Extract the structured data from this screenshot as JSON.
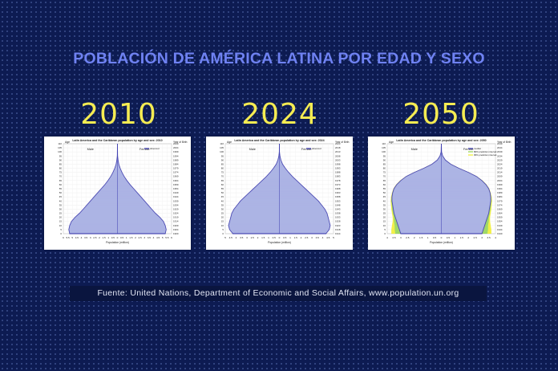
{
  "title": "POBLACIÓN DE AMÉRICA LATINA POR EDAD Y SEXO",
  "source": "Fuente: United Nations, Department of Economic and Social Affairs, www.population.un.org",
  "colors": {
    "background": "#0d1b52",
    "title": "#6f82f2",
    "year": "#f5ec52",
    "pyramid_fill": "#9da6e0",
    "pyramid_line": "#2d2ca6",
    "pi80": "#8fd14f",
    "pi95": "#f0ee2a"
  },
  "chart_data": [
    {
      "type": "population-pyramid",
      "year_label": "2010",
      "title": "Latin America and the Caribbean population by age and sex: 2010",
      "left_label": "Male",
      "right_label": "Female",
      "y_left_title": "Age",
      "y_right_title": "Year of Birth",
      "xlabel": "Population (million)",
      "legend": [
        "observed"
      ],
      "x_ticks": [
        "6",
        "5.5",
        "5",
        "4.5",
        "4",
        "3.5",
        "3",
        "2.5",
        "2",
        "1.5",
        "1",
        "0.5",
        "0",
        "0.5",
        "1",
        "1.5",
        "2",
        "2.5",
        "3",
        "3.5",
        "4",
        "4.5",
        "5",
        "5.5",
        "6"
      ],
      "age_ticks": [
        "0",
        "5",
        "10",
        "15",
        "20",
        "25",
        "30",
        "35",
        "40",
        "45",
        "50",
        "55",
        "60",
        "65",
        "70",
        "75",
        "80",
        "85",
        "90",
        "95",
        "100",
        "105",
        "110"
      ],
      "birth_ticks": [
        "1900",
        "1904",
        "1909",
        "1914",
        "1919",
        "1924",
        "1929",
        "1934",
        "1939",
        "1944",
        "1949",
        "1954",
        "1959",
        "1964",
        "1969",
        "1974",
        "1979",
        "1984",
        "1989",
        "1994",
        "1999",
        "2004",
        "2009"
      ],
      "xlim": [
        -6,
        6
      ],
      "age": [
        0,
        5,
        10,
        15,
        20,
        25,
        30,
        35,
        40,
        45,
        50,
        55,
        60,
        65,
        70,
        75,
        80,
        85,
        90,
        95,
        100,
        110
      ],
      "observed": [
        5.3,
        5.4,
        5.3,
        5.1,
        4.7,
        4.2,
        3.8,
        3.4,
        3.0,
        2.6,
        2.2,
        1.8,
        1.4,
        1.05,
        0.75,
        0.5,
        0.3,
        0.15,
        0.07,
        0.02,
        0.005,
        0
      ]
    },
    {
      "type": "population-pyramid",
      "year_label": "2024",
      "title": "Latin America and the Caribbean population by age and sex: 2024",
      "left_label": "Male",
      "right_label": "Female",
      "y_left_title": "Age",
      "y_right_title": "Year of Birth",
      "xlabel": "Population (million)",
      "legend": [
        "observed"
      ],
      "x_ticks": [
        "5",
        "4.5",
        "4",
        "3.5",
        "3",
        "2.5",
        "2",
        "1.5",
        "1",
        "0.5",
        "0",
        "0.5",
        "1",
        "1.5",
        "2",
        "2.5",
        "3",
        "3.5",
        "4",
        "4.5",
        "5"
      ],
      "age_ticks": [
        "0",
        "5",
        "10",
        "15",
        "20",
        "25",
        "30",
        "35",
        "40",
        "45",
        "50",
        "55",
        "60",
        "65",
        "70",
        "75",
        "80",
        "85",
        "90",
        "95",
        "100",
        "105",
        "110"
      ],
      "birth_ticks": [
        "1914",
        "1918",
        "1923",
        "1928",
        "1933",
        "1938",
        "1943",
        "1948",
        "1953",
        "1958",
        "1963",
        "1968",
        "1973",
        "1978",
        "1983",
        "1988",
        "1993",
        "1998",
        "2003",
        "2008",
        "2013",
        "2018",
        "2023"
      ],
      "xlim": [
        -5,
        5
      ],
      "age": [
        0,
        5,
        10,
        15,
        20,
        25,
        30,
        35,
        40,
        45,
        50,
        55,
        60,
        65,
        70,
        75,
        80,
        85,
        90,
        95,
        100,
        110
      ],
      "observed": [
        4.3,
        4.6,
        4.7,
        4.6,
        4.5,
        4.4,
        4.2,
        3.9,
        3.6,
        3.2,
        2.8,
        2.4,
        2.0,
        1.6,
        1.2,
        0.85,
        0.55,
        0.3,
        0.14,
        0.05,
        0.01,
        0
      ]
    },
    {
      "type": "population-pyramid",
      "year_label": "2050",
      "title": "Latin America and the Caribbean population by age and sex: 2050",
      "left_label": "Male",
      "right_label": "Female",
      "y_left_title": "Age",
      "y_right_title": "Year of Birth",
      "xlabel": "Population (million)",
      "legend": [
        "median",
        "80% prediction interval",
        "95% prediction interval"
      ],
      "x_ticks": [
        "4",
        "3.5",
        "3",
        "2.5",
        "2",
        "1.5",
        "1",
        "0.5",
        "0",
        "0.5",
        "1",
        "1.5",
        "2",
        "2.5",
        "3",
        "3.5",
        "4"
      ],
      "age_ticks": [
        "0",
        "5",
        "10",
        "15",
        "20",
        "25",
        "30",
        "35",
        "40",
        "45",
        "50",
        "55",
        "60",
        "65",
        "70",
        "75",
        "80",
        "85",
        "90",
        "95",
        "100",
        "105",
        "110"
      ],
      "birth_ticks": [
        "1940",
        "1944",
        "1949",
        "1954",
        "1959",
        "1964",
        "1969",
        "1974",
        "1979",
        "1984",
        "1989",
        "1994",
        "1999",
        "2004",
        "2009",
        "2014",
        "2019",
        "2024",
        "2029",
        "2034",
        "2039",
        "2044",
        "2049"
      ],
      "xlim": [
        -4,
        4
      ],
      "age": [
        0,
        5,
        10,
        15,
        20,
        25,
        30,
        35,
        40,
        45,
        50,
        55,
        60,
        65,
        70,
        75,
        80,
        85,
        90,
        95,
        100,
        110
      ],
      "median": [
        3.0,
        3.1,
        3.2,
        3.3,
        3.4,
        3.5,
        3.55,
        3.6,
        3.65,
        3.65,
        3.6,
        3.5,
        3.3,
        3.0,
        2.6,
        2.0,
        1.3,
        0.7,
        0.3,
        0.1,
        0.02,
        0
      ],
      "pi95_low": [
        2.2,
        2.3,
        2.5,
        2.8,
        3.1,
        3.3,
        3.4,
        3.5,
        3.55,
        3.6,
        3.55,
        3.45,
        3.25,
        2.95,
        2.55,
        1.95,
        1.25,
        0.66,
        0.28,
        0.09,
        0.02,
        0
      ],
      "pi95_high": [
        3.7,
        3.7,
        3.65,
        3.6,
        3.6,
        3.65,
        3.7,
        3.72,
        3.75,
        3.72,
        3.65,
        3.55,
        3.35,
        3.05,
        2.65,
        2.05,
        1.35,
        0.74,
        0.32,
        0.11,
        0.025,
        0
      ],
      "pi80_low": [
        2.6,
        2.7,
        2.85,
        3.05,
        3.25,
        3.4,
        3.48,
        3.55,
        3.6,
        3.62,
        3.57,
        3.47,
        3.27,
        2.97,
        2.57,
        1.97,
        1.27,
        0.68,
        0.29,
        0.095,
        0.02,
        0
      ],
      "pi80_high": [
        3.4,
        3.45,
        3.45,
        3.5,
        3.52,
        3.58,
        3.63,
        3.66,
        3.7,
        3.68,
        3.62,
        3.52,
        3.32,
        3.02,
        2.62,
        2.02,
        1.32,
        0.72,
        0.31,
        0.105,
        0.022,
        0
      ]
    }
  ]
}
